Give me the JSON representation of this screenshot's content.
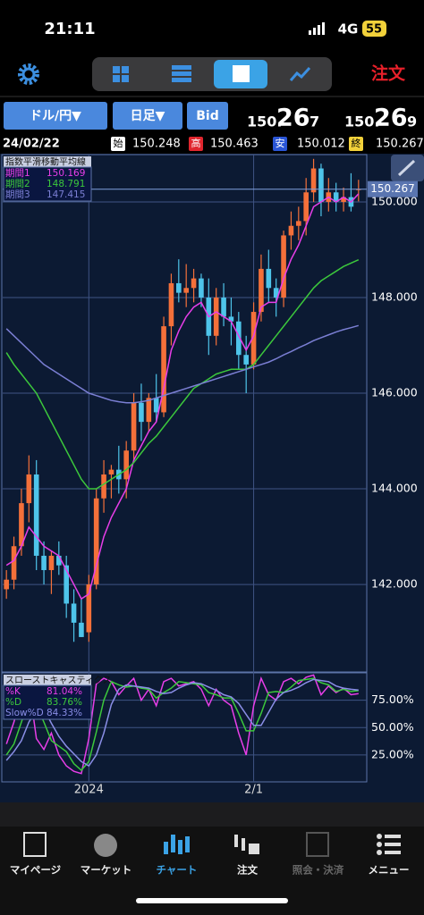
{
  "status_bar": {
    "time": "21:11",
    "network": "4G",
    "battery": "55"
  },
  "toolbar": {
    "order": "注文"
  },
  "controls": {
    "pair": "ドル/円▼",
    "period": "日足▼",
    "side": "Bid",
    "bid": {
      "prefix": "150.",
      "big": "26",
      "small": "7"
    },
    "ask": {
      "prefix": "150.",
      "big": "26",
      "small": "9"
    }
  },
  "ohlc_row": {
    "date": "24/02/22",
    "open_label": "始",
    "high_label": "高",
    "low_label": "安",
    "close_label": "終"
  },
  "chart_data": [
    {
      "type": "candlestick",
      "title": "指数平滑移動平均線",
      "grid": true,
      "up_color": "#f4703a",
      "down_color": "#4ec4ea",
      "categories": [
        null,
        null,
        null,
        null,
        null,
        null,
        null,
        null,
        null,
        null,
        null,
        "2024",
        null,
        null,
        null,
        null,
        null,
        null,
        null,
        null,
        null,
        null,
        null,
        null,
        null,
        null,
        null,
        null,
        null,
        null,
        null,
        null,
        null,
        "2/1",
        null,
        null,
        null,
        null,
        null,
        null,
        null,
        null,
        null,
        null,
        null,
        null,
        null,
        null
      ],
      "open": [
        141.9,
        142.1,
        142.8,
        143.7,
        144.3,
        142.6,
        142.3,
        142.6,
        142.4,
        141.6,
        141.2,
        141.0,
        142.0,
        143.8,
        144.3,
        144.4,
        144.2,
        144.8,
        145.8,
        145.4,
        145.9,
        145.6,
        147.4,
        148.3,
        148.1,
        148.2,
        148.4,
        148.0,
        147.2,
        148.0,
        147.6,
        147.5,
        146.8,
        146.6,
        147.7,
        148.6,
        148.2,
        148.0,
        149.3,
        149.5,
        149.6,
        150.2,
        150.7,
        150.0,
        150.2,
        150.0,
        150.1,
        150.248
      ],
      "high": [
        142.3,
        143.0,
        144.0,
        144.7,
        144.6,
        142.9,
        142.7,
        142.9,
        142.6,
        141.9,
        141.7,
        142.2,
        144.0,
        144.6,
        144.5,
        144.9,
        145.0,
        146.0,
        146.2,
        146.0,
        146.4,
        147.6,
        148.5,
        148.8,
        148.7,
        148.6,
        148.5,
        148.4,
        148.2,
        148.3,
        148.0,
        147.7,
        147.2,
        147.9,
        148.9,
        149.0,
        148.4,
        149.4,
        149.8,
        149.9,
        150.5,
        150.9,
        150.8,
        150.5,
        150.4,
        150.3,
        150.6,
        150.463
      ],
      "low": [
        141.7,
        141.9,
        142.6,
        143.3,
        142.3,
        142.0,
        141.8,
        142.2,
        141.3,
        140.8,
        140.9,
        140.8,
        141.9,
        143.5,
        143.8,
        143.9,
        143.8,
        144.6,
        145.0,
        145.2,
        145.4,
        145.5,
        147.0,
        147.9,
        147.8,
        147.9,
        147.8,
        146.8,
        147.0,
        147.4,
        147.0,
        146.5,
        146.0,
        146.5,
        147.5,
        147.9,
        147.6,
        147.8,
        149.0,
        149.2,
        149.3,
        150.0,
        149.7,
        149.8,
        149.8,
        149.8,
        149.8,
        150.012
      ],
      "close": [
        142.1,
        142.8,
        143.7,
        144.3,
        142.6,
        142.3,
        142.6,
        142.4,
        141.6,
        141.2,
        140.9,
        142.0,
        143.8,
        144.3,
        144.4,
        144.2,
        144.8,
        145.8,
        145.4,
        145.9,
        145.6,
        147.4,
        148.3,
        148.1,
        148.2,
        148.4,
        148.0,
        147.2,
        148.0,
        147.6,
        147.5,
        146.8,
        146.6,
        147.7,
        148.6,
        148.2,
        148.0,
        149.3,
        149.5,
        149.6,
        150.2,
        150.7,
        150.0,
        150.2,
        150.0,
        150.1,
        149.9,
        150.267
      ],
      "series": [
        {
          "name": "期間1",
          "color": "#e83ee8",
          "values": [
            142.4,
            142.5,
            142.8,
            143.2,
            143.0,
            142.8,
            142.7,
            142.6,
            142.3,
            142.0,
            141.7,
            141.8,
            142.4,
            143.0,
            143.4,
            143.7,
            144.0,
            144.6,
            144.9,
            145.2,
            145.4,
            146.1,
            146.9,
            147.3,
            147.6,
            147.8,
            147.9,
            147.6,
            147.7,
            147.6,
            147.5,
            147.2,
            146.9,
            147.2,
            147.8,
            147.9,
            147.9,
            148.4,
            148.8,
            149.1,
            149.5,
            149.9,
            150.0,
            150.1,
            150.0,
            150.1,
            150.0,
            150.169
          ]
        },
        {
          "name": "期間2",
          "color": "#3cc83c",
          "values": [
            146.85,
            146.6,
            146.4,
            146.2,
            146.0,
            145.7,
            145.4,
            145.1,
            144.8,
            144.5,
            144.2,
            144.0,
            144.0,
            144.1,
            144.2,
            144.3,
            144.4,
            144.55,
            144.75,
            144.95,
            145.1,
            145.3,
            145.5,
            145.7,
            145.9,
            146.1,
            146.2,
            146.3,
            146.4,
            146.45,
            146.5,
            146.5,
            146.5,
            146.6,
            146.8,
            147.0,
            147.2,
            147.4,
            147.6,
            147.8,
            148.0,
            148.2,
            148.35,
            148.45,
            148.55,
            148.65,
            148.72,
            148.791
          ]
        },
        {
          "name": "期間3",
          "color": "#7b7fd4",
          "values": [
            147.35,
            147.2,
            147.05,
            146.9,
            146.75,
            146.6,
            146.5,
            146.4,
            146.3,
            146.2,
            146.1,
            146.0,
            145.95,
            145.9,
            145.85,
            145.82,
            145.8,
            145.8,
            145.82,
            145.85,
            145.9,
            145.95,
            146.0,
            146.05,
            146.1,
            146.15,
            146.2,
            146.25,
            146.3,
            146.35,
            146.4,
            146.45,
            146.5,
            146.55,
            146.6,
            146.65,
            146.72,
            146.8,
            146.87,
            146.95,
            147.02,
            147.1,
            147.16,
            147.22,
            147.28,
            147.33,
            147.37,
            147.415
          ]
        }
      ],
      "ylim": [
        140.17,
        150.99
      ],
      "yticks": [
        {
          "value": 142,
          "label": "142.000"
        },
        {
          "value": 144,
          "label": "144.000"
        },
        {
          "value": 146,
          "label": "146.000"
        },
        {
          "value": 148,
          "label": "148.000"
        },
        {
          "value": 150,
          "label": "150.000"
        }
      ]
    },
    {
      "type": "line",
      "title": "スローストキャスティクス",
      "grid": true,
      "series": [
        {
          "name": "%K",
          "color": "#e83ee8",
          "values": [
            35,
            55,
            80,
            90,
            40,
            30,
            45,
            25,
            15,
            10,
            8,
            40,
            90,
            95,
            92,
            80,
            88,
            95,
            75,
            85,
            70,
            92,
            95,
            88,
            90,
            92,
            85,
            70,
            85,
            75,
            70,
            45,
            25,
            70,
            95,
            80,
            75,
            92,
            95,
            90,
            96,
            98,
            80,
            88,
            82,
            86,
            80,
            81.04
          ],
          "value_labels": [
            null,
            null,
            null,
            null,
            null,
            null,
            null,
            null,
            null,
            null,
            null,
            null,
            null,
            null,
            null,
            null,
            null,
            null,
            null,
            null,
            null,
            null,
            null,
            null,
            null,
            null,
            null,
            null,
            null,
            null,
            null,
            null,
            null,
            null,
            null,
            null,
            null,
            null,
            null,
            null,
            null,
            null,
            null,
            null,
            null,
            null,
            null,
            "81.04%"
          ]
        },
        {
          "name": "%D",
          "color": "#3cc83c",
          "values": [
            25,
            35,
            55,
            75,
            70,
            55,
            38,
            33,
            28,
            17,
            11,
            19,
            46,
            75,
            92,
            89,
            87,
            88,
            86,
            85,
            77,
            82,
            86,
            92,
            91,
            90,
            89,
            82,
            80,
            77,
            77,
            63,
            47,
            47,
            63,
            82,
            83,
            82,
            87,
            93,
            94,
            95,
            91,
            89,
            83,
            85,
            83,
            83.76
          ],
          "value_labels": [
            null,
            null,
            null,
            null,
            null,
            null,
            null,
            null,
            null,
            null,
            null,
            null,
            null,
            null,
            null,
            null,
            null,
            null,
            null,
            null,
            null,
            null,
            null,
            null,
            null,
            null,
            null,
            null,
            null,
            null,
            null,
            null,
            null,
            null,
            null,
            null,
            null,
            null,
            null,
            null,
            null,
            null,
            null,
            null,
            null,
            null,
            null,
            "83.76%"
          ]
        },
        {
          "name": "Slow%D",
          "color": "#8a8ee6",
          "values": [
            20,
            28,
            38,
            55,
            66,
            67,
            54,
            42,
            33,
            26,
            19,
            15,
            25,
            45,
            71,
            85,
            89,
            88,
            87,
            86,
            83,
            81,
            82,
            86,
            89,
            91,
            90,
            87,
            84,
            80,
            78,
            72,
            62,
            52,
            52,
            64,
            76,
            82,
            84,
            87,
            91,
            94,
            93,
            92,
            88,
            86,
            85,
            84.33
          ],
          "value_labels": [
            null,
            null,
            null,
            null,
            null,
            null,
            null,
            null,
            null,
            null,
            null,
            null,
            null,
            null,
            null,
            null,
            null,
            null,
            null,
            null,
            null,
            null,
            null,
            null,
            null,
            null,
            null,
            null,
            null,
            null,
            null,
            null,
            null,
            null,
            null,
            null,
            null,
            null,
            null,
            null,
            null,
            null,
            null,
            null,
            null,
            null,
            null,
            "84.33%"
          ]
        }
      ],
      "ylim": [
        0,
        100
      ],
      "yticks": [
        {
          "value": 25,
          "label": "25.00%"
        },
        {
          "value": 50,
          "label": "50.00%"
        },
        {
          "value": 75,
          "label": "75.00%"
        }
      ]
    }
  ],
  "tabs": [
    "マイページ",
    "マーケット",
    "チャート",
    "注文",
    "照会・決済",
    "メニュー"
  ]
}
